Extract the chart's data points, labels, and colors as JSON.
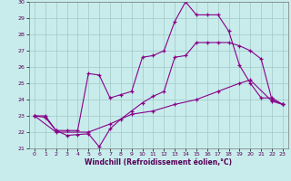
{
  "xlabel": "Windchill (Refroidissement éolien,°C)",
  "bg_color": "#c8ecec",
  "grid_color": "#a0c8c8",
  "line_color": "#880088",
  "ylim": [
    21,
    30
  ],
  "xlim": [
    -0.5,
    23.5
  ],
  "yticks": [
    21,
    22,
    23,
    24,
    25,
    26,
    27,
    28,
    29,
    30
  ],
  "xticks": [
    0,
    1,
    2,
    3,
    4,
    5,
    6,
    7,
    8,
    9,
    10,
    11,
    12,
    13,
    14,
    15,
    16,
    17,
    18,
    19,
    20,
    21,
    22,
    23
  ],
  "line1_x": [
    0,
    1,
    2,
    3,
    4,
    5,
    6,
    7,
    8,
    9,
    10,
    11,
    12,
    13,
    14,
    15,
    16,
    17,
    18,
    19,
    20,
    21,
    22,
    23
  ],
  "line1_y": [
    23.0,
    22.9,
    22.1,
    21.8,
    21.85,
    21.9,
    21.1,
    22.2,
    22.8,
    23.3,
    23.8,
    24.2,
    24.5,
    26.6,
    26.7,
    27.5,
    27.5,
    27.5,
    27.5,
    27.3,
    27.0,
    26.5,
    24.0,
    23.7
  ],
  "line2_x": [
    0,
    1,
    2,
    3,
    4,
    5,
    6,
    7,
    8,
    9,
    10,
    11,
    12,
    13,
    14,
    15,
    16,
    17,
    18,
    19,
    20,
    21,
    22,
    23
  ],
  "line2_y": [
    23.0,
    23.0,
    22.1,
    22.1,
    22.1,
    25.6,
    25.5,
    24.1,
    24.3,
    24.5,
    26.6,
    26.7,
    27.0,
    28.8,
    30.0,
    29.2,
    29.2,
    29.2,
    28.2,
    26.1,
    25.0,
    24.1,
    24.1,
    23.7
  ],
  "line3_x": [
    0,
    2,
    5,
    7,
    9,
    11,
    13,
    15,
    17,
    19,
    20,
    22,
    23
  ],
  "line3_y": [
    23.0,
    22.0,
    22.0,
    22.5,
    23.1,
    23.3,
    23.7,
    24.0,
    24.5,
    25.0,
    25.2,
    23.9,
    23.7
  ]
}
